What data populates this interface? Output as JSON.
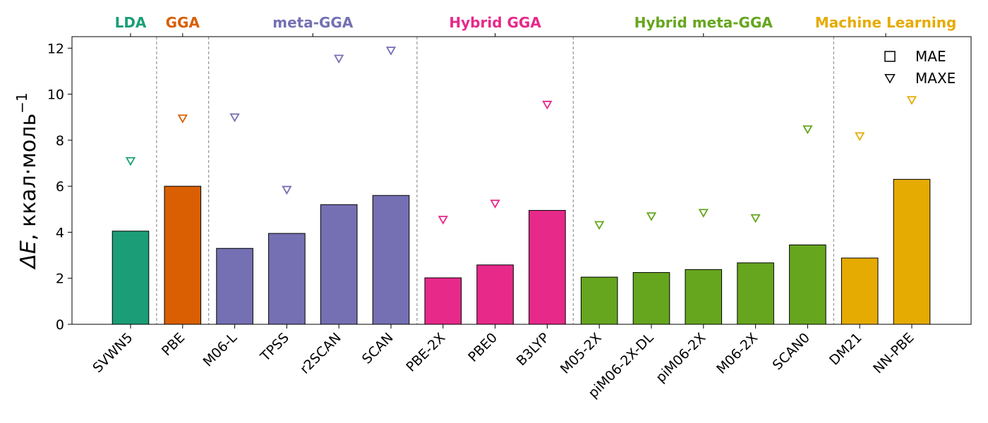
{
  "chart_data": {
    "type": "bar",
    "ylabel_symbol": "ΔE",
    "ylabel_unit": ", ккал·моль",
    "ylabel_exp": "−1",
    "ylim": [
      0,
      12.5
    ],
    "yticks": [
      0,
      2,
      4,
      6,
      8,
      10,
      12
    ],
    "grid": false,
    "legend_position": "top-right",
    "legend": [
      {
        "marker": "square",
        "label": "MAE"
      },
      {
        "marker": "triangle-down",
        "label": "MAXE"
      }
    ],
    "groups": [
      {
        "name": "LDA",
        "color": "#1b9e77",
        "start": 0,
        "end": 0
      },
      {
        "name": "GGA",
        "color": "#d95f02",
        "start": 1,
        "end": 1
      },
      {
        "name": "meta-GGA",
        "color": "#7570b3",
        "start": 2,
        "end": 5
      },
      {
        "name": "Hybrid GGA",
        "color": "#e7298a",
        "start": 6,
        "end": 8
      },
      {
        "name": "Hybrid meta-GGA",
        "color": "#66a61e",
        "start": 9,
        "end": 13
      },
      {
        "name": "Machine Learning",
        "color": "#e6ab02",
        "start": 14,
        "end": 15
      }
    ],
    "categories": [
      "SVWN5",
      "PBE",
      "M06-L",
      "TPSS",
      "r2SCAN",
      "SCAN",
      "PBE-2X",
      "PBE0",
      "B3LYP",
      "M05-2X",
      "piM06-2X-DL",
      "piM06-2X",
      "M06-2X",
      "SCAN0",
      "DM21",
      "NN-PBE"
    ],
    "series": [
      {
        "name": "MAE",
        "values": [
          4.05,
          6.0,
          3.3,
          3.95,
          5.2,
          5.6,
          2.02,
          2.58,
          4.95,
          2.05,
          2.25,
          2.38,
          2.67,
          3.45,
          2.88,
          6.3
        ]
      },
      {
        "name": "MAXE",
        "values": [
          7.1,
          8.95,
          9.0,
          5.85,
          11.55,
          11.9,
          4.55,
          5.25,
          9.55,
          4.32,
          4.7,
          4.85,
          4.62,
          8.48,
          8.18,
          9.75
        ]
      }
    ]
  }
}
